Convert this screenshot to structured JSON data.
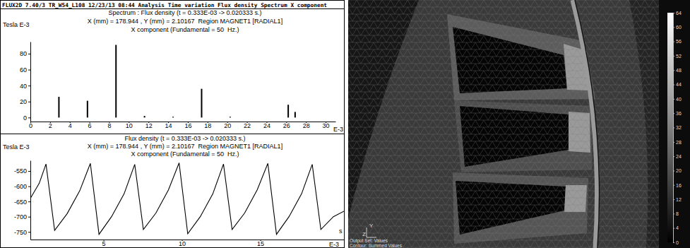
{
  "header": {
    "text": "FLUX2D 7.40/3 TR_W54_L108 12/23/13 08:44 Analysis Time variation Flux density Spectrum X component"
  },
  "chart_data": [
    {
      "type": "bar",
      "title": "Spectrum : Flux density (t = 0.333E-03 -> 0.020333 s.)",
      "subtitle": "X (mm) = 178.944 , Y (mm) = 2.10167  Region MAGNET1 [RADIAL1]",
      "annotations": [
        "X component (Fundamental = 50  Hz.)"
      ],
      "y_label": "Tesla E-3",
      "x_label": "E-3",
      "x": [
        2.9,
        5.8,
        8.7,
        11.6,
        14.5,
        17.4,
        20.3,
        26.2,
        26.9
      ],
      "values": [
        26,
        21,
        91,
        2,
        1,
        36,
        1,
        16,
        7
      ],
      "color": "#000000",
      "xlim": [
        0,
        31
      ],
      "xticks": [
        0,
        2,
        4,
        6,
        8,
        10,
        12,
        14,
        16,
        18,
        20,
        22,
        24,
        26,
        28,
        30
      ],
      "ylim": [
        -5,
        95
      ],
      "yticks": [
        0,
        20,
        40,
        60,
        80
      ]
    },
    {
      "type": "line",
      "title": "Flux density (t = 0.333E-03 -> 0.020333 s.)",
      "subtitle": "X (mm) = 178.944 , Y (mm) = 2.10167  Region MAGNET1 [RADIAL1]",
      "annotations": [
        "X component (Fundamental = 50  Hz.)",
        "s"
      ],
      "y_label": "Tesla E-3",
      "x_label": "E-3",
      "x": [
        0.333,
        0.9,
        1.33,
        1.88,
        2.68,
        3.48,
        4.16,
        4.71,
        5.51,
        6.31,
        6.99,
        7.54,
        8.34,
        9.14,
        9.82,
        10.37,
        11.17,
        11.97,
        12.65,
        13.2,
        14.0,
        14.8,
        15.48,
        16.03,
        16.83,
        17.63,
        18.31,
        18.86,
        19.66,
        20.333
      ],
      "values": [
        -640,
        -590,
        -527,
        -745,
        -690,
        -615,
        -525,
        -758,
        -700,
        -625,
        -528,
        -742,
        -688,
        -612,
        -523,
        -756,
        -700,
        -625,
        -527,
        -742,
        -688,
        -612,
        -525,
        -758,
        -700,
        -625,
        -528,
        -742,
        -700,
        -682
      ],
      "color": "#000000",
      "xlim": [
        0.333,
        20.333
      ],
      "xticks": [
        5,
        10,
        15
      ],
      "ylim": [
        -775,
        -515
      ],
      "yticks": [
        -550,
        -600,
        -650,
        -700,
        -750
      ]
    }
  ],
  "fem_view": {
    "colorbar": {
      "range": [
        0,
        64
      ],
      "ticks": [
        0,
        4,
        8,
        12,
        16,
        20,
        24,
        28,
        32,
        36,
        40,
        44,
        48,
        52,
        56,
        60,
        64
      ]
    },
    "triad_labels": [
      "Y",
      "Z"
    ],
    "texts": [
      "Output Set: Values",
      "Contour: Summed Values"
    ]
  }
}
